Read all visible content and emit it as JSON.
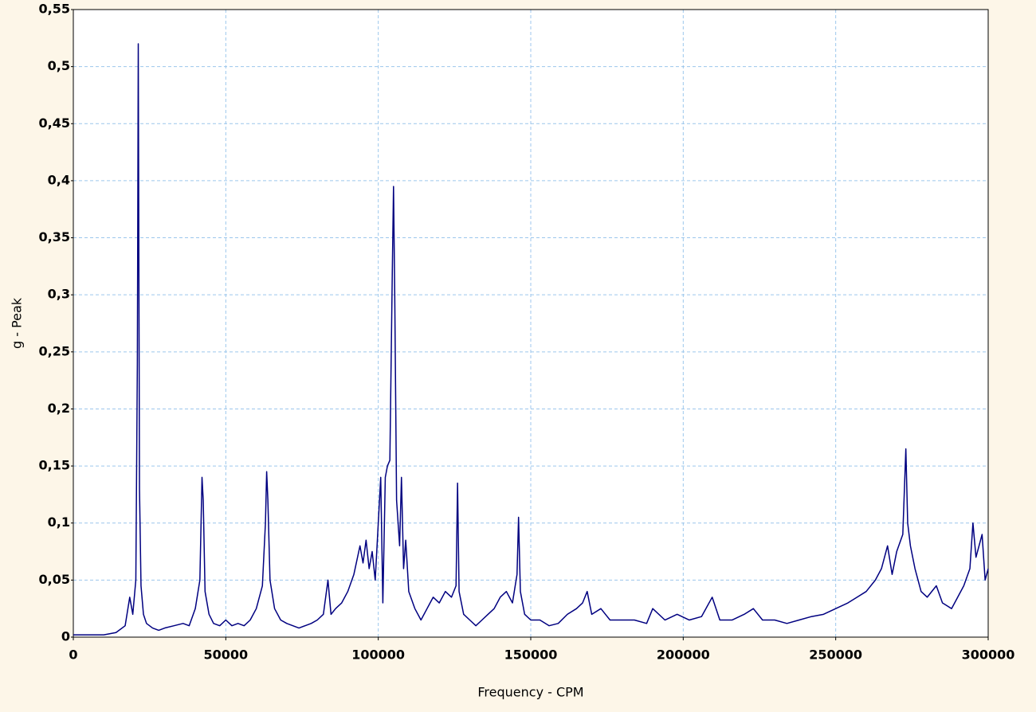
{
  "chart_data": {
    "type": "line",
    "xlabel": "Frequency - CPM",
    "ylabel": "g - Peak",
    "color": "#000080",
    "grid": true,
    "xlim": [
      0,
      300000
    ],
    "ylim": [
      0,
      0.55
    ],
    "xticks": [
      0,
      50000,
      100000,
      150000,
      200000,
      250000,
      300000
    ],
    "yticks": [
      0,
      {
        "value": 0.05,
        "label": "0,05"
      },
      {
        "value": 0.1,
        "label": "0,1"
      },
      {
        "value": 0.15,
        "label": "0,15"
      },
      {
        "value": 0.2,
        "label": "0,2"
      },
      {
        "value": 0.25,
        "label": "0,25"
      },
      {
        "value": 0.3,
        "label": "0,3"
      },
      {
        "value": 0.35,
        "label": "0,35"
      },
      {
        "value": 0.4,
        "label": "0,4"
      },
      {
        "value": 0.45,
        "label": "0,45"
      },
      {
        "value": 0.5,
        "label": "0,5"
      },
      {
        "value": 0.55,
        "label": "0,55"
      }
    ],
    "x": [
      0,
      5000,
      10000,
      14000,
      17000,
      18500,
      19500,
      20500,
      21000,
      21300,
      21700,
      22200,
      23000,
      24000,
      26000,
      28000,
      30000,
      33000,
      36000,
      38000,
      40000,
      41500,
      42200,
      42600,
      43200,
      44500,
      46000,
      48000,
      50000,
      52000,
      54000,
      56000,
      58000,
      60000,
      62000,
      63000,
      63400,
      63800,
      64500,
      66000,
      68000,
      70000,
      72000,
      74000,
      76000,
      78000,
      80000,
      82000,
      83500,
      84500,
      86000,
      88000,
      90000,
      92000,
      94000,
      95000,
      96000,
      97000,
      98000,
      99000,
      100000,
      100800,
      101500,
      102300,
      103000,
      103800,
      104600,
      105000,
      105400,
      106000,
      107000,
      107600,
      108300,
      109000,
      110000,
      112000,
      114000,
      116000,
      118000,
      120000,
      122000,
      124000,
      125500,
      126000,
      126500,
      128000,
      130000,
      132000,
      134000,
      136000,
      138000,
      140000,
      142000,
      144000,
      145500,
      146000,
      146600,
      148000,
      150000,
      153000,
      156000,
      159000,
      162000,
      165000,
      167000,
      168500,
      170000,
      173000,
      176000,
      180000,
      184000,
      188000,
      190000,
      194000,
      198000,
      202000,
      206000,
      209500,
      212000,
      216000,
      220000,
      223000,
      226000,
      230000,
      234000,
      238000,
      242000,
      246000,
      250000,
      254000,
      257000,
      260000,
      263000,
      265000,
      267000,
      268500,
      270000,
      272000,
      273000,
      273600,
      274500,
      276000,
      278000,
      280000,
      283000,
      285000,
      288000,
      290000,
      292000,
      294000,
      295000,
      296000,
      297000,
      298000,
      299000,
      300000
    ],
    "values": [
      0.002,
      0.002,
      0.002,
      0.004,
      0.01,
      0.035,
      0.02,
      0.05,
      0.24,
      0.52,
      0.13,
      0.045,
      0.02,
      0.012,
      0.008,
      0.006,
      0.008,
      0.01,
      0.012,
      0.01,
      0.025,
      0.05,
      0.14,
      0.12,
      0.04,
      0.02,
      0.012,
      0.01,
      0.015,
      0.01,
      0.012,
      0.01,
      0.015,
      0.025,
      0.045,
      0.1,
      0.145,
      0.12,
      0.05,
      0.025,
      0.015,
      0.012,
      0.01,
      0.008,
      0.01,
      0.012,
      0.015,
      0.02,
      0.05,
      0.02,
      0.025,
      0.03,
      0.04,
      0.055,
      0.08,
      0.065,
      0.085,
      0.06,
      0.075,
      0.05,
      0.1,
      0.14,
      0.03,
      0.14,
      0.15,
      0.155,
      0.32,
      0.395,
      0.3,
      0.12,
      0.08,
      0.14,
      0.06,
      0.085,
      0.04,
      0.025,
      0.015,
      0.025,
      0.035,
      0.03,
      0.04,
      0.035,
      0.045,
      0.135,
      0.04,
      0.02,
      0.015,
      0.01,
      0.015,
      0.02,
      0.025,
      0.035,
      0.04,
      0.03,
      0.055,
      0.105,
      0.04,
      0.02,
      0.015,
      0.015,
      0.01,
      0.012,
      0.02,
      0.025,
      0.03,
      0.04,
      0.02,
      0.025,
      0.015,
      0.015,
      0.015,
      0.012,
      0.025,
      0.015,
      0.02,
      0.015,
      0.018,
      0.035,
      0.015,
      0.015,
      0.02,
      0.025,
      0.015,
      0.015,
      0.012,
      0.015,
      0.018,
      0.02,
      0.025,
      0.03,
      0.035,
      0.04,
      0.05,
      0.06,
      0.08,
      0.055,
      0.075,
      0.09,
      0.165,
      0.1,
      0.08,
      0.06,
      0.04,
      0.035,
      0.045,
      0.03,
      0.025,
      0.035,
      0.045,
      0.06,
      0.1,
      0.07,
      0.08,
      0.09,
      0.05,
      0.06
    ]
  }
}
